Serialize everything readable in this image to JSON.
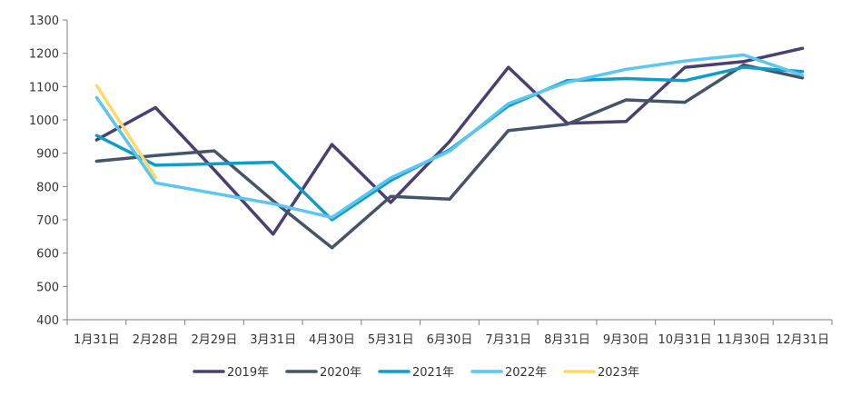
{
  "chart_data": {
    "type": "line",
    "categories": [
      "1月31日",
      "2月28日",
      "2月29日",
      "3月31日",
      "4月30日",
      "5月31日",
      "6月30日",
      "7月31日",
      "8月31日",
      "9月30日",
      "10月31日",
      "11月30日",
      "12月31日"
    ],
    "ylim": [
      400,
      1300
    ],
    "yticks": [
      400,
      500,
      600,
      700,
      800,
      900,
      1000,
      1100,
      1200,
      1300
    ],
    "grid": false,
    "legend_position": "bottom",
    "series": [
      {
        "name": "2019年",
        "color": "#4b3f72",
        "points": [
          [
            0,
            940
          ],
          [
            1,
            1037
          ],
          [
            2,
            850
          ],
          [
            3,
            657
          ],
          [
            4,
            926
          ],
          [
            5,
            752
          ],
          [
            6,
            935
          ],
          [
            7,
            1158
          ],
          [
            8,
            990
          ],
          [
            9,
            995
          ],
          [
            10,
            1158
          ],
          [
            11,
            1175
          ],
          [
            12,
            1215
          ]
        ]
      },
      {
        "name": "2020年",
        "color": "#44546a",
        "points": [
          [
            0,
            876
          ],
          [
            1,
            893
          ],
          [
            2,
            907
          ],
          [
            3,
            757
          ],
          [
            4,
            616
          ],
          [
            5,
            770
          ],
          [
            6,
            762
          ],
          [
            7,
            968
          ],
          [
            8,
            987
          ],
          [
            9,
            1060
          ],
          [
            10,
            1053
          ],
          [
            11,
            1165
          ],
          [
            12,
            1126
          ]
        ]
      },
      {
        "name": "2021年",
        "color": "#0e9dc9",
        "points": [
          [
            0,
            953
          ],
          [
            1,
            864
          ],
          [
            2,
            868
          ],
          [
            3,
            873
          ],
          [
            4,
            700
          ],
          [
            5,
            818
          ],
          [
            6,
            910
          ],
          [
            7,
            1042
          ],
          [
            8,
            1118
          ],
          [
            9,
            1124
          ],
          [
            10,
            1118
          ],
          [
            11,
            1158
          ],
          [
            12,
            1145
          ]
        ]
      },
      {
        "name": "2022年",
        "color": "#5cc6f2",
        "points": [
          [
            0,
            1067
          ],
          [
            1,
            811
          ],
          [
            3,
            748
          ],
          [
            4,
            707
          ],
          [
            5,
            826
          ],
          [
            6,
            906
          ],
          [
            7,
            1049
          ],
          [
            8,
            1113
          ],
          [
            9,
            1152
          ],
          [
            10,
            1177
          ],
          [
            11,
            1195
          ],
          [
            12,
            1134
          ]
        ]
      },
      {
        "name": "2023年",
        "color": "#ffd966",
        "points": [
          [
            0,
            1103
          ],
          [
            1,
            827
          ]
        ]
      }
    ]
  }
}
